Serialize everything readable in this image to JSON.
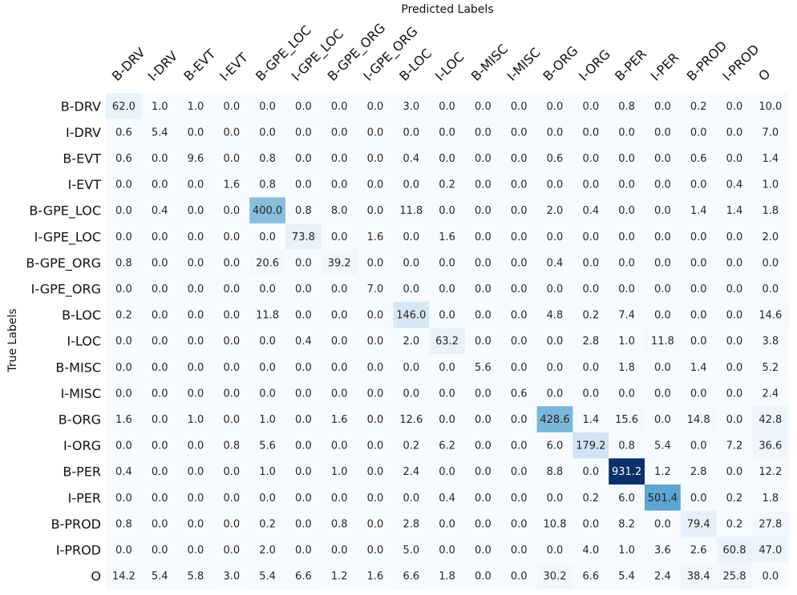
{
  "chart_data": {
    "type": "heatmap",
    "title": "",
    "xlabel": "Predicted Labels",
    "ylabel": "True Labels",
    "x_categories": [
      "B-DRV",
      "I-DRV",
      "B-EVT",
      "I-EVT",
      "B-GPE_LOC",
      "I-GPE_LOC",
      "B-GPE_ORG",
      "I-GPE_ORG",
      "B-LOC",
      "I-LOC",
      "B-MISC",
      "I-MISC",
      "B-ORG",
      "I-ORG",
      "B-PER",
      "I-PER",
      "B-PROD",
      "I-PROD",
      "O"
    ],
    "y_categories": [
      "B-DRV",
      "I-DRV",
      "B-EVT",
      "I-EVT",
      "B-GPE_LOC",
      "I-GPE_LOC",
      "B-GPE_ORG",
      "I-GPE_ORG",
      "B-LOC",
      "I-LOC",
      "B-MISC",
      "I-MISC",
      "B-ORG",
      "I-ORG",
      "B-PER",
      "I-PER",
      "B-PROD",
      "I-PROD",
      "O"
    ],
    "values": [
      [
        62.0,
        1.0,
        1.0,
        0.0,
        0.0,
        0.0,
        0.0,
        0.0,
        3.0,
        0.0,
        0.0,
        0.0,
        0.0,
        0.0,
        0.8,
        0.0,
        0.2,
        0.0,
        10.0
      ],
      [
        0.6,
        5.4,
        0.0,
        0.0,
        0.0,
        0.0,
        0.0,
        0.0,
        0.0,
        0.0,
        0.0,
        0.0,
        0.0,
        0.0,
        0.0,
        0.0,
        0.0,
        0.0,
        7.0
      ],
      [
        0.6,
        0.0,
        9.6,
        0.0,
        0.8,
        0.0,
        0.0,
        0.0,
        0.4,
        0.0,
        0.0,
        0.0,
        0.6,
        0.0,
        0.0,
        0.0,
        0.6,
        0.0,
        1.4
      ],
      [
        0.0,
        0.0,
        0.0,
        1.6,
        0.8,
        0.0,
        0.0,
        0.0,
        0.0,
        0.2,
        0.0,
        0.0,
        0.0,
        0.0,
        0.0,
        0.0,
        0.0,
        0.4,
        1.0
      ],
      [
        0.0,
        0.4,
        0.0,
        0.0,
        400.0,
        0.8,
        8.0,
        0.0,
        11.8,
        0.0,
        0.0,
        0.0,
        2.0,
        0.4,
        0.0,
        0.0,
        1.4,
        1.4,
        1.8
      ],
      [
        0.0,
        0.0,
        0.0,
        0.0,
        0.0,
        73.8,
        0.0,
        1.6,
        0.0,
        1.6,
        0.0,
        0.0,
        0.0,
        0.0,
        0.0,
        0.0,
        0.0,
        0.0,
        2.0
      ],
      [
        0.8,
        0.0,
        0.0,
        0.0,
        20.6,
        0.0,
        39.2,
        0.0,
        0.0,
        0.0,
        0.0,
        0.0,
        0.4,
        0.0,
        0.0,
        0.0,
        0.0,
        0.0,
        0.0
      ],
      [
        0.0,
        0.0,
        0.0,
        0.0,
        0.0,
        0.0,
        0.0,
        7.0,
        0.0,
        0.0,
        0.0,
        0.0,
        0.0,
        0.0,
        0.0,
        0.0,
        0.0,
        0.0,
        0.0
      ],
      [
        0.2,
        0.0,
        0.0,
        0.0,
        11.8,
        0.0,
        0.0,
        0.0,
        146.0,
        0.0,
        0.0,
        0.0,
        4.8,
        0.2,
        7.4,
        0.0,
        0.0,
        0.0,
        14.6
      ],
      [
        0.0,
        0.0,
        0.0,
        0.0,
        0.0,
        0.4,
        0.0,
        0.0,
        2.0,
        63.2,
        0.0,
        0.0,
        0.0,
        2.8,
        1.0,
        11.8,
        0.0,
        0.0,
        3.8
      ],
      [
        0.0,
        0.0,
        0.0,
        0.0,
        0.0,
        0.0,
        0.0,
        0.0,
        0.0,
        0.0,
        5.6,
        0.0,
        0.0,
        0.0,
        1.8,
        0.0,
        1.4,
        0.0,
        5.2
      ],
      [
        0.0,
        0.0,
        0.0,
        0.0,
        0.0,
        0.0,
        0.0,
        0.0,
        0.0,
        0.0,
        0.0,
        0.6,
        0.0,
        0.0,
        0.0,
        0.0,
        0.0,
        0.0,
        2.4
      ],
      [
        1.6,
        0.0,
        1.0,
        0.0,
        1.0,
        0.0,
        1.6,
        0.0,
        12.6,
        0.0,
        0.0,
        0.0,
        428.6,
        1.4,
        15.6,
        0.0,
        14.8,
        0.0,
        42.8
      ],
      [
        0.0,
        0.0,
        0.0,
        0.8,
        5.6,
        0.0,
        0.0,
        0.0,
        0.2,
        6.2,
        0.0,
        0.0,
        6.0,
        179.2,
        0.8,
        5.4,
        0.0,
        7.2,
        36.6
      ],
      [
        0.4,
        0.0,
        0.0,
        0.0,
        1.0,
        0.0,
        1.0,
        0.0,
        2.4,
        0.0,
        0.0,
        0.0,
        8.8,
        0.0,
        931.2,
        1.2,
        2.8,
        0.0,
        12.2
      ],
      [
        0.0,
        0.0,
        0.0,
        0.0,
        0.0,
        0.0,
        0.0,
        0.0,
        0.0,
        0.4,
        0.0,
        0.0,
        0.0,
        0.2,
        6.0,
        501.4,
        0.0,
        0.2,
        1.8
      ],
      [
        0.8,
        0.0,
        0.0,
        0.0,
        0.2,
        0.0,
        0.8,
        0.0,
        2.8,
        0.0,
        0.0,
        0.0,
        10.8,
        0.0,
        8.2,
        0.0,
        79.4,
        0.2,
        27.8
      ],
      [
        0.0,
        0.0,
        0.0,
        0.0,
        2.0,
        0.0,
        0.0,
        0.0,
        5.0,
        0.0,
        0.0,
        0.0,
        0.0,
        4.0,
        1.0,
        3.6,
        2.6,
        60.8,
        47.0
      ],
      [
        14.2,
        5.4,
        5.8,
        3.0,
        5.4,
        6.6,
        1.2,
        1.6,
        6.6,
        1.8,
        0.0,
        0.0,
        30.2,
        6.6,
        5.4,
        2.4,
        38.4,
        25.8,
        0.0
      ]
    ],
    "value_format": "one decimal",
    "colormap": "Blues",
    "color_range": [
      0,
      931.2
    ],
    "colorbar": false,
    "x_ticks_position": "top",
    "grid": false
  }
}
